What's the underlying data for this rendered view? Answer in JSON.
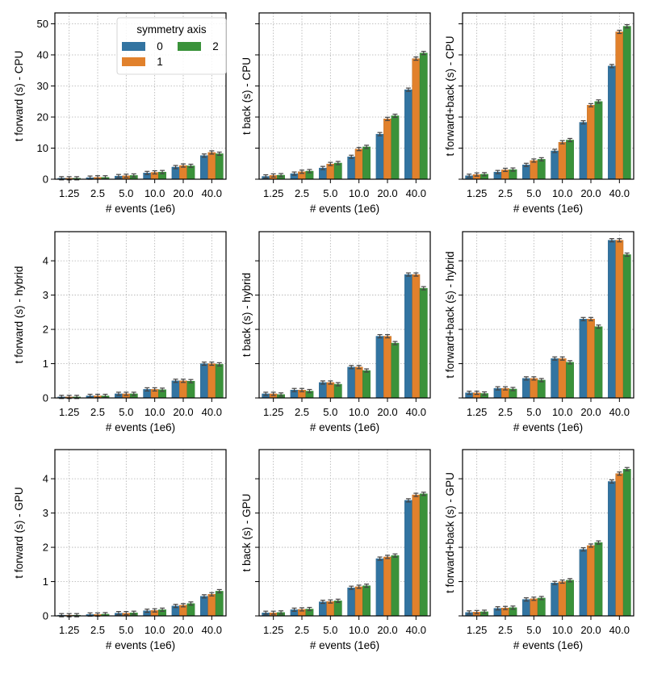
{
  "chart_data": {
    "type": "bar",
    "layout": "3x3 grid, shared y-axis per row",
    "categories": [
      "1.25",
      "2.5",
      "5.0",
      "10.0",
      "20.0",
      "40.0"
    ],
    "xlabel": "# events (1e6)",
    "legend": {
      "title": "symmetry axis",
      "entries": [
        "0",
        "1",
        "2"
      ],
      "location": "top-center of first panel"
    },
    "series_colors": [
      "#3274a1",
      "#e1812c",
      "#3a923a"
    ],
    "rows": [
      {
        "name": "CPU",
        "ylim": [
          0,
          53.5
        ],
        "yticks": [
          0,
          10,
          20,
          30,
          40,
          50
        ]
      },
      {
        "name": "hybrid",
        "ylim": [
          0,
          4.85
        ],
        "yticks": [
          0,
          1,
          2,
          3,
          4
        ]
      },
      {
        "name": "GPU",
        "ylim": [
          0,
          4.85
        ],
        "yticks": [
          0,
          1,
          2,
          3,
          4
        ]
      }
    ],
    "panels": [
      {
        "row": 0,
        "col": 0,
        "ylabel": "t forward (s) - CPU",
        "series": [
          {
            "name": "0",
            "values": [
              0.3,
              0.5,
              1.0,
              2.0,
              3.9,
              7.6
            ]
          },
          {
            "name": "1",
            "values": [
              0.3,
              0.6,
              1.1,
              2.2,
              4.4,
              8.6
            ]
          },
          {
            "name": "2",
            "values": [
              0.3,
              0.6,
              1.2,
              2.3,
              4.3,
              8.2
            ]
          }
        ]
      },
      {
        "row": 0,
        "col": 1,
        "ylabel": "t back (s) - CPU",
        "series": [
          {
            "name": "0",
            "values": [
              0.9,
              1.8,
              3.6,
              7.2,
              14.5,
              28.8
            ]
          },
          {
            "name": "1",
            "values": [
              1.2,
              2.4,
              4.9,
              9.7,
              19.4,
              38.8
            ]
          },
          {
            "name": "2",
            "values": [
              1.3,
              2.6,
              5.2,
              10.4,
              20.4,
              40.6
            ]
          }
        ]
      },
      {
        "row": 0,
        "col": 2,
        "ylabel": "t forward+back (s) - CPU",
        "series": [
          {
            "name": "0",
            "values": [
              1.1,
              2.3,
              4.6,
              9.1,
              18.3,
              36.4
            ]
          },
          {
            "name": "1",
            "values": [
              1.5,
              3.0,
              6.0,
              11.9,
              23.8,
              47.4
            ]
          },
          {
            "name": "2",
            "values": [
              1.6,
              3.1,
              6.4,
              12.6,
              25.0,
              49.2
            ]
          }
        ]
      },
      {
        "row": 1,
        "col": 0,
        "ylabel": "t forward (s) - hybrid",
        "series": [
          {
            "name": "0",
            "values": [
              0.03,
              0.06,
              0.12,
              0.25,
              0.5,
              1.0
            ]
          },
          {
            "name": "1",
            "values": [
              0.03,
              0.06,
              0.12,
              0.25,
              0.5,
              1.0
            ]
          },
          {
            "name": "2",
            "values": [
              0.03,
              0.06,
              0.12,
              0.24,
              0.49,
              0.98
            ]
          }
        ]
      },
      {
        "row": 1,
        "col": 1,
        "ylabel": "t back (s) - hybrid",
        "series": [
          {
            "name": "0",
            "values": [
              0.12,
              0.23,
              0.45,
              0.9,
              1.8,
              3.6
            ]
          },
          {
            "name": "1",
            "values": [
              0.12,
              0.23,
              0.45,
              0.9,
              1.8,
              3.6
            ]
          },
          {
            "name": "2",
            "values": [
              0.1,
              0.2,
              0.4,
              0.8,
              1.6,
              3.2
            ]
          }
        ]
      },
      {
        "row": 1,
        "col": 2,
        "ylabel": "t forward+back (s) - hybrid",
        "series": [
          {
            "name": "0",
            "values": [
              0.15,
              0.28,
              0.57,
              1.15,
              2.3,
              4.6
            ]
          },
          {
            "name": "1",
            "values": [
              0.15,
              0.28,
              0.57,
              1.15,
              2.3,
              4.6
            ]
          },
          {
            "name": "2",
            "values": [
              0.13,
              0.26,
              0.52,
              1.04,
              2.08,
              4.18
            ]
          }
        ]
      },
      {
        "row": 2,
        "col": 0,
        "ylabel": "t forward (s) - GPU",
        "series": [
          {
            "name": "0",
            "values": [
              0.02,
              0.04,
              0.08,
              0.15,
              0.29,
              0.57
            ]
          },
          {
            "name": "1",
            "values": [
              0.02,
              0.04,
              0.08,
              0.16,
              0.31,
              0.63
            ]
          },
          {
            "name": "2",
            "values": [
              0.02,
              0.05,
              0.09,
              0.18,
              0.36,
              0.72
            ]
          }
        ]
      },
      {
        "row": 2,
        "col": 1,
        "ylabel": "t back (s) - GPU",
        "series": [
          {
            "name": "0",
            "values": [
              0.09,
              0.18,
              0.41,
              0.82,
              1.67,
              3.37
            ]
          },
          {
            "name": "1",
            "values": [
              0.09,
              0.19,
              0.42,
              0.85,
              1.72,
              3.53
            ]
          },
          {
            "name": "2",
            "values": [
              0.1,
              0.2,
              0.44,
              0.88,
              1.76,
              3.56
            ]
          }
        ]
      },
      {
        "row": 2,
        "col": 2,
        "ylabel": "t forward+back (s) - GPU",
        "series": [
          {
            "name": "0",
            "values": [
              0.1,
              0.22,
              0.48,
              0.96,
              1.94,
              3.92
            ]
          },
          {
            "name": "1",
            "values": [
              0.11,
              0.23,
              0.5,
              1.0,
              2.05,
              4.15
            ]
          },
          {
            "name": "2",
            "values": [
              0.12,
              0.24,
              0.52,
              1.04,
              2.14,
              4.28
            ]
          }
        ]
      }
    ]
  }
}
